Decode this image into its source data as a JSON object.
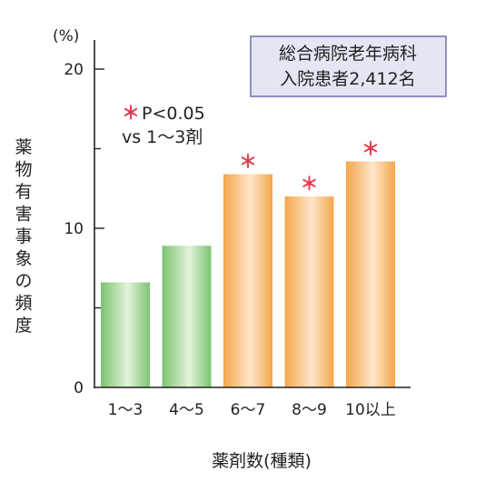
{
  "chart_data": {
    "type": "bar",
    "categories": [
      "1〜3",
      "4〜5",
      "6〜7",
      "8〜9",
      "10以上"
    ],
    "values": [
      6.6,
      8.9,
      13.4,
      12.0,
      14.2
    ],
    "significant": [
      false,
      false,
      true,
      true,
      true
    ],
    "unit": "(%)",
    "ylabel": "薬物有害事象の頻度",
    "xlabel": "薬剤数(種類)",
    "ylim": [
      0,
      20
    ],
    "yticks": [
      0,
      10,
      20
    ],
    "grid": false,
    "significance_marker": "＊",
    "annotation": {
      "line1": "P<0.05",
      "line2": "vs 1〜3剤"
    },
    "info_box": {
      "line1": "総合病院老年病科",
      "line2": "入院患者2,412名"
    },
    "colors": {
      "reference_bar": "green gradient",
      "elevated_bar": "orange gradient",
      "green_dark": "#7cc36f",
      "green_light": "#e3f3dc",
      "orange_dark": "#f5a64a",
      "orange_light": "#fde6cb",
      "marker": "#e63a4e",
      "axis": "#222222",
      "box_fill": "#e4e7f3",
      "box_stroke": "#6c71ad"
    }
  }
}
